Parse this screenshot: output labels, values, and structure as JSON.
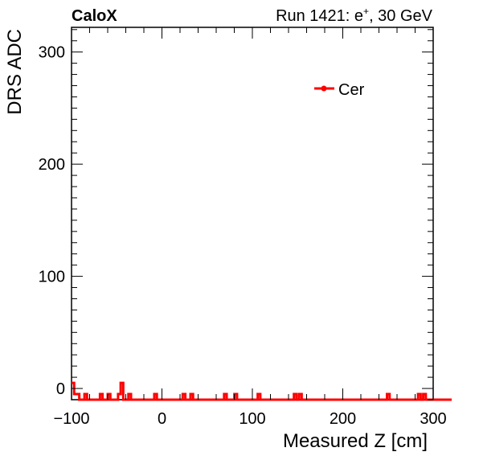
{
  "header": {
    "left_label": "CaloX",
    "right_label_main": "Run 1421: e",
    "right_label_sup": "+",
    "right_label_tail": ", 30 GeV"
  },
  "chart_data": {
    "type": "line",
    "title": "",
    "xlabel": "Measured Z [cm]",
    "ylabel": "DRS ADC",
    "xlim": [
      -100,
      300
    ],
    "ylim": [
      -10,
      322
    ],
    "xticks": [
      -100,
      0,
      100,
      200,
      300
    ],
    "xtick_labels": [
      "−100",
      "0",
      "100",
      "200",
      "300"
    ],
    "yticks": [
      0,
      100,
      200,
      300
    ],
    "ytick_labels": [
      "0",
      "100",
      "200",
      "300"
    ],
    "grid": false,
    "legend": {
      "placement": "top-right",
      "entries": [
        "Cer"
      ]
    },
    "line_color": "#ff0000",
    "series": [
      {
        "name": "Cer",
        "style": "histogram-step",
        "x_start": -100,
        "bin_width": 2.86,
        "values": [
          5,
          -5,
          -5,
          -10,
          -10,
          -5,
          -10,
          -10,
          -10,
          -10,
          -10,
          -5,
          -10,
          -10,
          -5,
          -10,
          -10,
          -10,
          -5,
          5,
          -10,
          -10,
          -5,
          -10,
          -10,
          -10,
          -10,
          -10,
          -10,
          -10,
          -10,
          -10,
          -5,
          -10,
          -10,
          -10,
          -10,
          -10,
          -10,
          -10,
          -10,
          -10,
          -10,
          -5,
          -10,
          -10,
          -5,
          -10,
          -10,
          -10,
          -10,
          -10,
          -10,
          -10,
          -10,
          -10,
          -10,
          -10,
          -10,
          -5,
          -10,
          -10,
          -10,
          -5,
          -10,
          -10,
          -10,
          -10,
          -10,
          -10,
          -10,
          -10,
          -5,
          -10,
          -10,
          -10,
          -10,
          -10,
          -10,
          -10,
          -10,
          -10,
          -10,
          -10,
          -10,
          -10,
          -5,
          -10,
          -5,
          -10,
          -10,
          -10,
          -10,
          -10,
          -10,
          -10,
          -10,
          -10,
          -10,
          -10,
          -10,
          -10,
          -10,
          -10,
          -10,
          -10,
          -10,
          -10,
          -10,
          -10,
          -10,
          -10,
          -10,
          -10,
          -10,
          -10,
          -10,
          -10,
          -10,
          -10,
          -10,
          -10,
          -5,
          -10,
          -10,
          -10,
          -10,
          -10,
          -10,
          -10,
          -10,
          -10,
          -10,
          -10,
          -5,
          -10,
          -5,
          -10,
          -10,
          -10,
          -10,
          -10,
          -10,
          -10,
          -10,
          -10,
          -10
        ]
      }
    ]
  }
}
